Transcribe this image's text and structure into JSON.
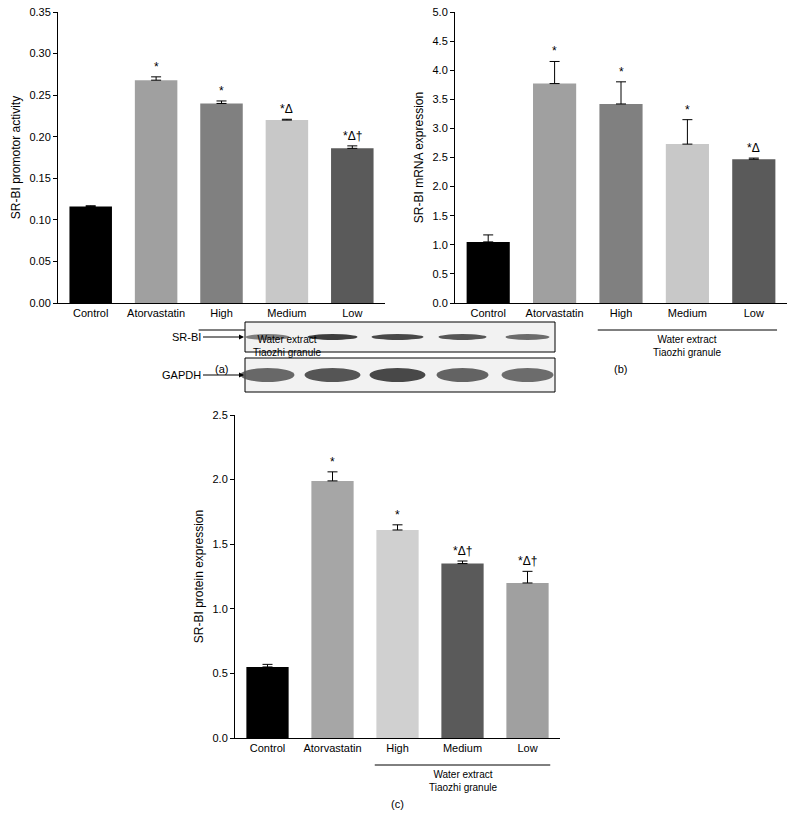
{
  "chart_data": [
    {
      "type": "bar",
      "title": "(a)",
      "y_label": "SR-BI promotor activity",
      "categories": [
        "Control",
        "Atorvastatin",
        "High",
        "Medium",
        "Low"
      ],
      "values": [
        0.116,
        0.268,
        0.24,
        0.22,
        0.186
      ],
      "errors": [
        0.001,
        0.004,
        0.003,
        0.001,
        0.003
      ],
      "colors": [
        "#000000",
        "#a0a0a0",
        "#808080",
        "#c8c8c8",
        "#5a5a5a"
      ],
      "annotations": [
        null,
        "*",
        "*",
        "*Δ",
        "*Δ†"
      ],
      "group_label": [
        "Water extract",
        "Tiaozhi granule"
      ],
      "group_categories": [
        "High",
        "Medium",
        "Low"
      ],
      "ylim": [
        0,
        0.35
      ],
      "yticks": [
        {
          "value": 0,
          "label": "0.00"
        },
        {
          "value": 0.05,
          "label": "0.05"
        },
        {
          "value": 0.1,
          "label": "0.10"
        },
        {
          "value": 0.15,
          "label": "0.15"
        },
        {
          "value": 0.2,
          "label": "0.20"
        },
        {
          "value": 0.25,
          "label": "0.25"
        },
        {
          "value": 0.3,
          "label": "0.30"
        },
        {
          "value": 0.35,
          "label": "0.35"
        }
      ],
      "grid": false
    },
    {
      "type": "bar",
      "title": "(b)",
      "y_label": "SR-BI mRNA expression",
      "categories": [
        "Control",
        "Atorvastatin",
        "High",
        "Medium",
        "Low"
      ],
      "values": [
        1.05,
        3.77,
        3.42,
        2.73,
        2.47
      ],
      "errors": [
        0.12,
        0.38,
        0.38,
        0.42,
        0.02
      ],
      "colors": [
        "#000000",
        "#a0a0a0",
        "#808080",
        "#c8c8c8",
        "#5a5a5a"
      ],
      "annotations": [
        null,
        "*",
        "*",
        "*",
        "*Δ"
      ],
      "group_label": [
        "Water extract",
        "Tiaozhi granule"
      ],
      "group_categories": [
        "High",
        "Medium",
        "Low"
      ],
      "ylim": [
        0,
        5
      ],
      "yticks": [
        {
          "value": 0,
          "label": "0.0"
        },
        0.5,
        {
          "value": 1,
          "label": "1.0"
        },
        1.5,
        {
          "value": 2,
          "label": "2.0"
        },
        2.5,
        {
          "value": 3,
          "label": "3.0"
        },
        3.5,
        {
          "value": 4,
          "label": "4.0"
        },
        4.5,
        {
          "value": 5,
          "label": "5.0"
        }
      ],
      "grid": false
    },
    {
      "type": "bar",
      "title": "(c)",
      "y_label": "SR-BI protein expression",
      "categories": [
        "Control",
        "Atorvastatin",
        "High",
        "Medium",
        "Low"
      ],
      "values": [
        0.55,
        1.99,
        1.61,
        1.35,
        1.2
      ],
      "errors": [
        0.02,
        0.07,
        0.04,
        0.02,
        0.09
      ],
      "colors": [
        "#000000",
        "#a6a6a6",
        "#d0d0d0",
        "#5a5a5a",
        "#a0a0a0"
      ],
      "annotations": [
        null,
        "*",
        "*",
        "*Δ†",
        "*Δ†"
      ],
      "group_label": [
        "Water extract",
        "Tiaozhi granule"
      ],
      "group_categories": [
        "High",
        "Medium",
        "Low"
      ],
      "blot_labels": [
        "SR-BI",
        "GAPDH"
      ],
      "ylim": [
        0,
        2.5
      ],
      "yticks": [
        {
          "value": 0,
          "label": "0.0"
        },
        0.5,
        {
          "value": 1,
          "label": "1.0"
        },
        1.5,
        {
          "value": 2,
          "label": "2.0"
        },
        2.5
      ],
      "grid": false
    }
  ]
}
